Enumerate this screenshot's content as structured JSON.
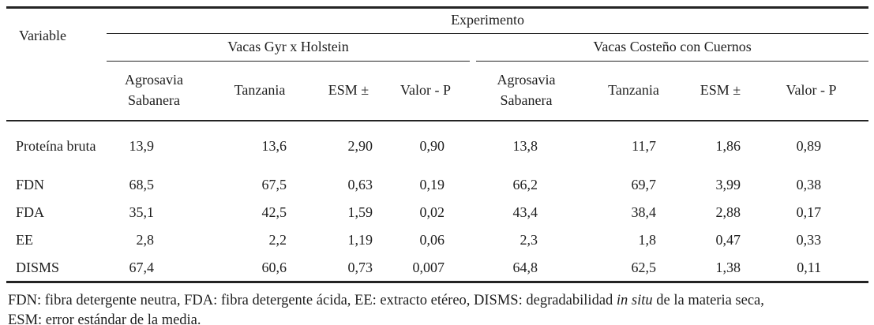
{
  "table": {
    "variable_header": "Variable",
    "experimento_header": "Experimento",
    "group1_header": "Vacas Gyr x Holstein",
    "group2_header": "Vacas Costeño con Cuernos",
    "sub_headers": [
      "Agrosavia Sabanera",
      "Tanzania",
      "ESM ±",
      "Valor - P",
      "Agrosavia Sabanera",
      "Tanzania",
      "ESM ±",
      "Valor - P"
    ],
    "rows": [
      {
        "variable": "Proteína bruta",
        "values": [
          "13,9",
          "13,6",
          "2,90",
          "0,90",
          "13,8",
          "11,7",
          "1,86",
          "0,89"
        ]
      },
      {
        "variable": "FDN",
        "values": [
          "68,5",
          "67,5",
          "0,63",
          "0,19",
          "66,2",
          "69,7",
          "3,99",
          "0,38"
        ]
      },
      {
        "variable": "FDA",
        "values": [
          "35,1",
          "42,5",
          "1,59",
          "0,02",
          "43,4",
          "38,4",
          "2,88",
          "0,17"
        ]
      },
      {
        "variable": "EE",
        "values": [
          "2,8",
          "2,2",
          "1,19",
          "0,06",
          "2,3",
          "1,8",
          "0,47",
          "0,33"
        ]
      },
      {
        "variable": "DISMS",
        "values": [
          "67,4",
          "60,6",
          "0,73",
          "0,007",
          "64,8",
          "62,5",
          "1,38",
          "0,11"
        ]
      }
    ]
  },
  "footnote": {
    "line1_pre_italic": "FDN: fibra detergente neutra, FDA: fibra detergente ácida, EE: extracto etéreo, DISMS: degradabilidad ",
    "line1_italic": "in situ",
    "line1_post_italic": " de la materia seca,",
    "line2": "ESM: error estándar de la media."
  },
  "colors": {
    "text": "#1e1e1e",
    "rule": "#242424",
    "background": "#ffffff"
  }
}
